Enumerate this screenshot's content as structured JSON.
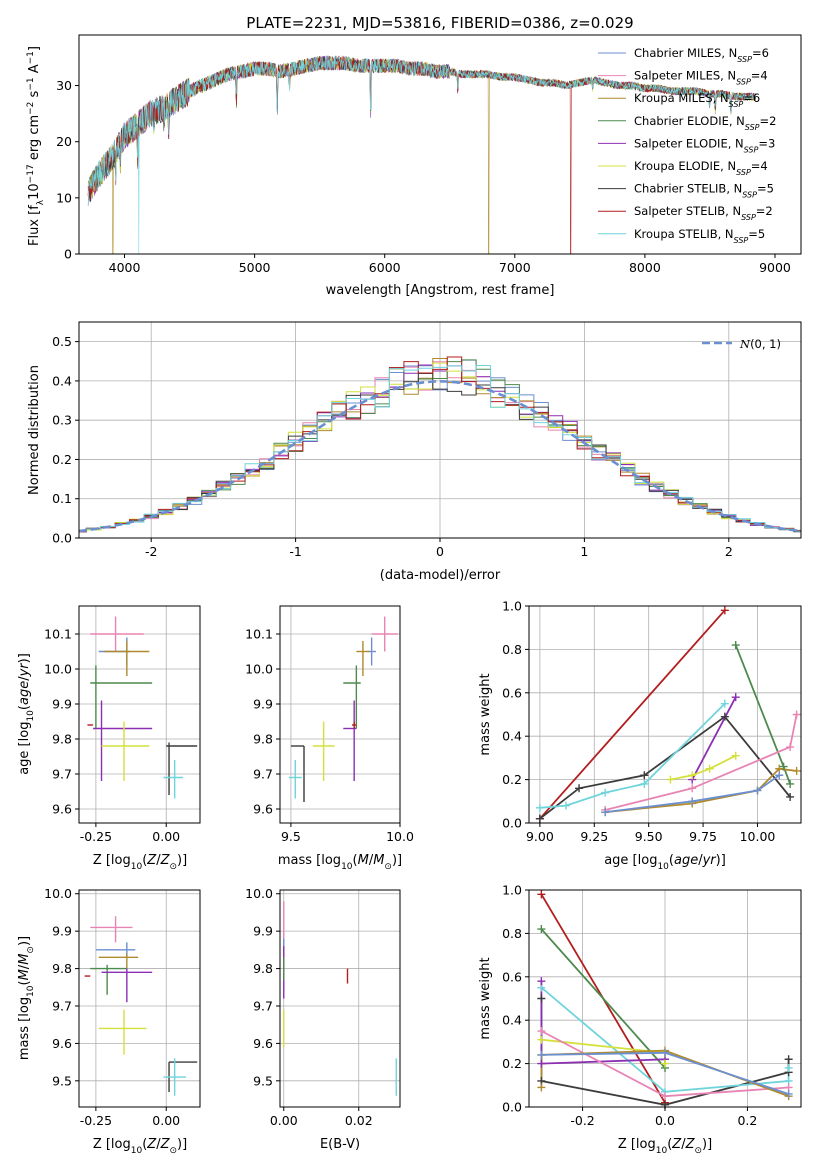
{
  "chart_data": [
    {
      "id": "spectrum",
      "type": "line",
      "title": "PLATE=2231, MJD=53816, FIBERID=0386, z=0.029",
      "xlabel": "wavelength [Angstrom, rest frame]",
      "ylabel": "Flux [f_λ10^-17 erg cm^-2 s^-1 A^-1]",
      "xlim": [
        3650,
        9200
      ],
      "ylim": [
        0,
        39
      ],
      "xticks": [
        4000,
        5000,
        6000,
        7000,
        8000,
        9000
      ],
      "yticks": [
        0,
        10,
        20,
        30
      ],
      "continuum": {
        "x": [
          3720,
          3800,
          3900,
          4000,
          4100,
          4200,
          4300,
          4400,
          4500,
          4600,
          4700,
          4800,
          4900,
          5000,
          5100,
          5200,
          5300,
          5400,
          5500,
          5600,
          5700,
          5800,
          5900,
          6000,
          6100,
          6200,
          6300,
          6400,
          6500,
          6600,
          6700,
          6800,
          6900,
          7000,
          7100,
          7200,
          7300,
          7400,
          7500,
          7600,
          7700,
          7800,
          7900,
          8000,
          8100,
          8200,
          8300,
          8400,
          8500,
          8600,
          8700,
          8800
        ],
        "y": [
          11,
          14,
          17,
          21,
          23,
          25,
          26,
          27.5,
          29,
          30,
          31,
          32,
          32.5,
          33,
          33,
          32.5,
          33,
          33.5,
          34,
          34,
          34,
          33.5,
          33.5,
          33.5,
          33.5,
          33,
          33,
          32.5,
          32.5,
          32,
          32,
          32,
          31.5,
          31.5,
          31,
          30.5,
          30.5,
          30,
          30.5,
          31,
          30.5,
          30,
          30,
          29.5,
          29.5,
          29,
          29,
          29,
          28.5,
          28.5,
          28,
          28
        ]
      },
      "series": [
        {
          "name": "Chabrier MILES, N_SSP=6",
          "color": "#6b8fd0",
          "dropouts": []
        },
        {
          "name": "Salpeter MILES, N_SSP=4",
          "color": "#e884b4",
          "dropouts": []
        },
        {
          "name": "Kroupa MILES, N_SSP=6",
          "color": "#b08a2c",
          "dropouts": [
            3910,
            6800
          ]
        },
        {
          "name": "Chabrier ELODIE, N_SSP=2",
          "color": "#4d8a4d",
          "dropouts": []
        },
        {
          "name": "Salpeter ELODIE, N_SSP=3",
          "color": "#8b2fb4",
          "dropouts": []
        },
        {
          "name": "Kroupa ELODIE, N_SSP=4",
          "color": "#d4e03c",
          "dropouts": []
        },
        {
          "name": "Chabrier STELIB, N_SSP=5",
          "color": "#3c3c3c",
          "dropouts": []
        },
        {
          "name": "Salpeter STELIB, N_SSP=2",
          "color": "#b21e1e",
          "dropouts": [
            7430
          ]
        },
        {
          "name": "Kroupa STELIB, N_SSP=5",
          "color": "#6fd4dc",
          "dropouts": [
            4110
          ]
        }
      ]
    },
    {
      "id": "residuals",
      "type": "histogram",
      "xlabel": "(data-model)/error",
      "ylabel": "Normed distribution",
      "xlim": [
        -2.5,
        2.5
      ],
      "ylim": [
        0,
        0.55
      ],
      "xticks": [
        -2,
        -1,
        0,
        1,
        2
      ],
      "yticks": [
        0.0,
        0.1,
        0.2,
        0.3,
        0.4,
        0.5
      ],
      "legend": "$\\mathcal{N}(0, 1)$",
      "legend_color": "#6b8fd0"
    },
    {
      "id": "age_vs_Z",
      "type": "errorbar",
      "xlabel": "Z [log10(Z/Z⊙)]",
      "ylabel": "age [log10(age/yr)]",
      "xlim": [
        -0.31,
        0.12
      ],
      "ylim": [
        9.56,
        10.18
      ],
      "xticks": [
        -0.25,
        0.0
      ],
      "yticks": [
        9.6,
        9.7,
        9.8,
        9.9,
        10.0,
        10.1
      ],
      "points": [
        {
          "color": "#6b8fd0",
          "x": -0.14,
          "xerr": [
            0.1,
            0.01
          ],
          "y": 10.05,
          "yerr": [
            0.04,
            0.04
          ]
        },
        {
          "color": "#e884b4",
          "x": -0.18,
          "xerr": [
            0.09,
            0.1
          ],
          "y": 10.1,
          "yerr": [
            0.05,
            0.05
          ]
        },
        {
          "color": "#b08a2c",
          "x": -0.14,
          "xerr": [
            0.08,
            0.08
          ],
          "y": 10.05,
          "yerr": [
            0.07,
            0.03
          ]
        },
        {
          "color": "#4d8a4d",
          "x": -0.25,
          "xerr": [
            0.02,
            0.2
          ],
          "y": 9.96,
          "yerr": [
            0.13,
            0.05
          ]
        },
        {
          "color": "#8b2fb4",
          "x": -0.23,
          "xerr": [
            0.03,
            0.18
          ],
          "y": 9.83,
          "yerr": [
            0.15,
            0.08
          ]
        },
        {
          "color": "#d4e03c",
          "x": -0.15,
          "xerr": [
            0.08,
            0.09
          ],
          "y": 9.78,
          "yerr": [
            0.1,
            0.07
          ]
        },
        {
          "color": "#3c3c3c",
          "x": 0.01,
          "xerr": [
            0.01,
            0.1
          ],
          "y": 9.78,
          "yerr": [
            0.14,
            0.01
          ]
        },
        {
          "color": "#b21e1e",
          "x": -0.27,
          "xerr": [
            0.01,
            0.01
          ],
          "y": 9.84,
          "yerr": [
            0.0,
            0.0
          ]
        },
        {
          "color": "#6fd4dc",
          "x": 0.03,
          "xerr": [
            0.04,
            0.03
          ],
          "y": 9.69,
          "yerr": [
            0.06,
            0.05
          ]
        }
      ]
    },
    {
      "id": "age_vs_mass",
      "type": "errorbar",
      "xlabel": "mass [log10(M/M⊙)]",
      "ylabel": "",
      "xlim": [
        9.45,
        10.0
      ],
      "ylim": [
        9.56,
        10.18
      ],
      "xticks": [
        9.5,
        10.0
      ],
      "yticks": [
        9.6,
        9.7,
        9.8,
        9.9,
        10.0,
        10.1
      ],
      "points": [
        {
          "color": "#6b8fd0",
          "x": 9.87,
          "xerr": [
            0.02,
            0.02
          ],
          "y": 10.05,
          "yerr": [
            0.04,
            0.04
          ]
        },
        {
          "color": "#e884b4",
          "x": 9.93,
          "xerr": [
            0.06,
            0.06
          ],
          "y": 10.1,
          "yerr": [
            0.05,
            0.05
          ]
        },
        {
          "color": "#b08a2c",
          "x": 9.83,
          "xerr": [
            0.03,
            0.03
          ],
          "y": 10.05,
          "yerr": [
            0.07,
            0.03
          ]
        },
        {
          "color": "#4d8a4d",
          "x": 9.8,
          "xerr": [
            0.06,
            0.02
          ],
          "y": 9.96,
          "yerr": [
            0.13,
            0.05
          ]
        },
        {
          "color": "#8b2fb4",
          "x": 9.79,
          "xerr": [
            0.05,
            0.01
          ],
          "y": 9.83,
          "yerr": [
            0.15,
            0.08
          ]
        },
        {
          "color": "#d4e03c",
          "x": 9.65,
          "xerr": [
            0.05,
            0.05
          ],
          "y": 9.78,
          "yerr": [
            0.1,
            0.07
          ]
        },
        {
          "color": "#3c3c3c",
          "x": 9.56,
          "xerr": [
            0.06,
            0.0
          ],
          "y": 9.78,
          "yerr": [
            0.16,
            0.0
          ]
        },
        {
          "color": "#b21e1e",
          "x": 9.79,
          "xerr": [
            0.01,
            0.01
          ],
          "y": 9.84,
          "yerr": [
            0.01,
            0.01
          ]
        },
        {
          "color": "#6fd4dc",
          "x": 9.52,
          "xerr": [
            0.03,
            0.03
          ],
          "y": 9.69,
          "yerr": [
            0.06,
            0.05
          ]
        }
      ]
    },
    {
      "id": "weight_vs_age",
      "type": "line",
      "xlabel": "age [log10(age/yr)]",
      "ylabel": "mass weight",
      "xlim": [
        8.95,
        10.2
      ],
      "ylim": [
        0.0,
        1.0
      ],
      "xticks": [
        9.0,
        9.25,
        9.5,
        9.75,
        10.0
      ],
      "yticks": [
        0.0,
        0.2,
        0.4,
        0.6,
        0.8,
        1.0
      ],
      "series": [
        {
          "color": "#b21e1e",
          "x": [
            9.0,
            9.85
          ],
          "y": [
            0.02,
            0.98
          ]
        },
        {
          "color": "#4d8a4d",
          "x": [
            9.9,
            10.12,
            10.15
          ],
          "y": [
            0.82,
            0.26,
            0.18
          ]
        },
        {
          "color": "#3c3c3c",
          "x": [
            9.0,
            9.18,
            9.48,
            9.85,
            10.15
          ],
          "y": [
            0.02,
            0.16,
            0.22,
            0.49,
            0.12
          ]
        },
        {
          "color": "#6fd4dc",
          "x": [
            9.0,
            9.12,
            9.3,
            9.48,
            9.85
          ],
          "y": [
            0.07,
            0.08,
            0.14,
            0.18,
            0.55
          ]
        },
        {
          "color": "#8b2fb4",
          "x": [
            9.7,
            9.9
          ],
          "y": [
            0.2,
            0.58
          ]
        },
        {
          "color": "#d4e03c",
          "x": [
            9.6,
            9.7,
            9.78,
            9.9
          ],
          "y": [
            0.2,
            0.22,
            0.25,
            0.31
          ]
        },
        {
          "color": "#e884b4",
          "x": [
            9.3,
            9.7,
            10.15,
            10.18
          ],
          "y": [
            0.06,
            0.16,
            0.35,
            0.5
          ]
        },
        {
          "color": "#b08a2c",
          "x": [
            9.3,
            9.7,
            10.0,
            10.1,
            10.18
          ],
          "y": [
            0.05,
            0.09,
            0.15,
            0.25,
            0.24
          ]
        },
        {
          "color": "#6b8fd0",
          "x": [
            9.3,
            9.7,
            10.0,
            10.1
          ],
          "y": [
            0.05,
            0.1,
            0.15,
            0.22
          ]
        }
      ]
    },
    {
      "id": "mass_vs_Z",
      "type": "errorbar",
      "xlabel": "Z [log10(Z/Z⊙)]",
      "ylabel": "mass [log10(M/M⊙)]",
      "xlim": [
        -0.31,
        0.12
      ],
      "ylim": [
        9.43,
        10.01
      ],
      "xticks": [
        -0.25,
        0.0
      ],
      "yticks": [
        9.5,
        9.6,
        9.7,
        9.8,
        9.9,
        10.0
      ],
      "points": [
        {
          "color": "#6b8fd0",
          "x": -0.14,
          "xerr": [
            0.11,
            0.03
          ],
          "y": 9.85,
          "yerr": [
            0.02,
            0.02
          ]
        },
        {
          "color": "#e884b4",
          "x": -0.18,
          "xerr": [
            0.09,
            0.06
          ],
          "y": 9.91,
          "yerr": [
            0.04,
            0.03
          ]
        },
        {
          "color": "#b08a2c",
          "x": -0.14,
          "xerr": [
            0.1,
            0.04
          ],
          "y": 9.83,
          "yerr": [
            0.03,
            0.01
          ]
        },
        {
          "color": "#4d8a4d",
          "x": -0.21,
          "xerr": [
            0.06,
            0.07
          ],
          "y": 9.8,
          "yerr": [
            0.07,
            0.01
          ]
        },
        {
          "color": "#8b2fb4",
          "x": -0.14,
          "xerr": [
            0.09,
            0.09
          ],
          "y": 9.79,
          "yerr": [
            0.08,
            0.01
          ]
        },
        {
          "color": "#d4e03c",
          "x": -0.15,
          "xerr": [
            0.09,
            0.08
          ],
          "y": 9.64,
          "yerr": [
            0.07,
            0.05
          ]
        },
        {
          "color": "#3c3c3c",
          "x": 0.01,
          "xerr": [
            0.0,
            0.1
          ],
          "y": 9.55,
          "yerr": [
            0.08,
            0.0
          ]
        },
        {
          "color": "#b21e1e",
          "x": -0.28,
          "xerr": [
            0.01,
            0.01
          ],
          "y": 9.78,
          "yerr": [
            0.0,
            0.0
          ]
        },
        {
          "color": "#6fd4dc",
          "x": 0.03,
          "xerr": [
            0.04,
            0.04
          ],
          "y": 9.51,
          "yerr": [
            0.05,
            0.05
          ]
        }
      ]
    },
    {
      "id": "mass_vs_ebv",
      "type": "errorbar",
      "xlabel": "E(B-V)",
      "ylabel": "",
      "xlim": [
        -0.001,
        0.031
      ],
      "ylim": [
        9.43,
        10.01
      ],
      "xticks": [
        0.0,
        0.02
      ],
      "yticks": [
        9.5,
        9.6,
        9.7,
        9.8,
        9.9,
        10.0
      ],
      "points": [
        {
          "color": "#e884b4",
          "x": 0.0,
          "xerr": [
            0.0,
            0.0
          ],
          "y": 9.91,
          "yerr": [
            0.07,
            0.07
          ]
        },
        {
          "color": "#6b8fd0",
          "x": 0.0,
          "xerr": [
            0.0,
            0.0
          ],
          "y": 9.85,
          "yerr": [
            0.03,
            0.03
          ]
        },
        {
          "color": "#b08a2c",
          "x": 0.0,
          "xerr": [
            0.0,
            0.0
          ],
          "y": 9.83,
          "yerr": [
            0.03,
            0.03
          ]
        },
        {
          "color": "#8b2fb4",
          "x": 0.0,
          "xerr": [
            0.0,
            0.0
          ],
          "y": 9.79,
          "yerr": [
            0.07,
            0.07
          ]
        },
        {
          "color": "#4d8a4d",
          "x": 0.0,
          "xerr": [
            0.0,
            0.0
          ],
          "y": 9.8,
          "yerr": [
            0.03,
            0.03
          ]
        },
        {
          "color": "#d4e03c",
          "x": 0.0,
          "xerr": [
            0.0,
            0.0
          ],
          "y": 9.64,
          "yerr": [
            0.05,
            0.05
          ]
        },
        {
          "color": "#b21e1e",
          "x": 0.017,
          "xerr": [
            0.0,
            0.0
          ],
          "y": 9.78,
          "yerr": [
            0.02,
            0.02
          ]
        },
        {
          "color": "#6fd4dc",
          "x": 0.03,
          "xerr": [
            0.0,
            0.0
          ],
          "y": 9.51,
          "yerr": [
            0.05,
            0.05
          ]
        }
      ]
    },
    {
      "id": "weight_vs_Z",
      "type": "line",
      "xlabel": "Z [log10(Z/Z⊙)]",
      "ylabel": "mass weight",
      "xlim": [
        -0.33,
        0.33
      ],
      "ylim": [
        0.0,
        1.0
      ],
      "xticks": [
        -0.2,
        0.0,
        0.2
      ],
      "yticks": [
        0.0,
        0.2,
        0.4,
        0.6,
        0.8,
        1.0
      ],
      "series": [
        {
          "color": "#b21e1e",
          "x": [
            -0.3,
            0.0
          ],
          "y": [
            0.98,
            0.02
          ]
        },
        {
          "color": "#4d8a4d",
          "x": [
            -0.3,
            0.0
          ],
          "y": [
            0.82,
            0.18
          ]
        },
        {
          "color": "#3c3c3c",
          "x": [
            -0.3,
            -0.3,
            0.0,
            0.3,
            0.3
          ],
          "y": [
            0.5,
            0.12,
            0.01,
            0.16,
            0.22
          ]
        },
        {
          "color": "#6fd4dc",
          "x": [
            -0.3,
            0.0,
            0.3,
            0.3
          ],
          "y": [
            0.55,
            0.07,
            0.12,
            0.18
          ]
        },
        {
          "color": "#8b2fb4",
          "x": [
            -0.3,
            -0.3,
            0.0
          ],
          "y": [
            0.58,
            0.2,
            0.22
          ]
        },
        {
          "color": "#d4e03c",
          "x": [
            -0.3,
            0.0,
            0.0
          ],
          "y": [
            0.31,
            0.25,
            0.2
          ]
        },
        {
          "color": "#e884b4",
          "x": [
            -0.3,
            0.0,
            0.3
          ],
          "y": [
            0.35,
            0.05,
            0.09
          ]
        },
        {
          "color": "#b08a2c",
          "x": [
            -0.3,
            -0.3,
            0.0,
            0.3
          ],
          "y": [
            0.09,
            0.24,
            0.26,
            0.05
          ]
        },
        {
          "color": "#6b8fd0",
          "x": [
            -0.3,
            0.0,
            0.3
          ],
          "y": [
            0.24,
            0.25,
            0.06
          ]
        }
      ]
    }
  ]
}
